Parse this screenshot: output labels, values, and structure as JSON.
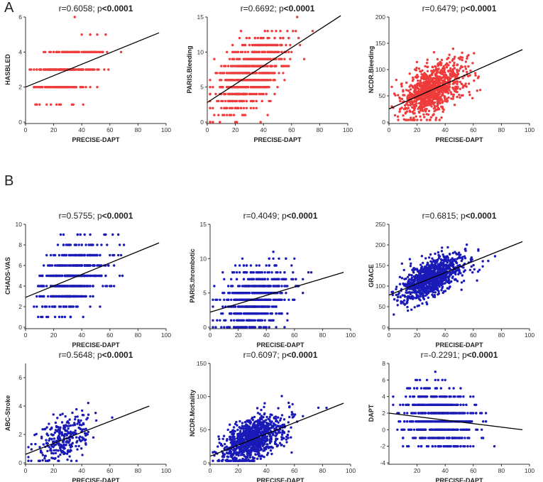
{
  "panels": {
    "a": "A",
    "b": "B"
  },
  "chart_data": [
    {
      "type": "scatter",
      "id": "c0",
      "color": "#ef3b3b",
      "title_plain": "r=0.6058; p",
      "title_bold": "<0.0001",
      "xlabel": "PRECISE-DAPT",
      "ylabel": "HASBLED",
      "xlim": [
        0,
        100
      ],
      "ylim": [
        0,
        6
      ],
      "xticks": [
        0,
        20,
        40,
        60,
        80,
        100
      ],
      "yticks": [
        0,
        2,
        4,
        6
      ],
      "trend": [
        [
          0,
          2.0
        ],
        [
          95,
          5.1
        ]
      ],
      "x_range": [
        3,
        96
      ],
      "x_center": 25,
      "x_sd": 13,
      "discrete": true,
      "spread": 0.7,
      "n": 320,
      "seed": 11,
      "y_levels": [
        1,
        2,
        3,
        4,
        5,
        6
      ]
    },
    {
      "type": "scatter",
      "id": "c1",
      "color": "#ef3b3b",
      "title_plain": "r=0.6692; p",
      "title_bold": "<0.0001",
      "xlabel": "PRECISE-DAPT",
      "ylabel": "PARIS.Bleeding",
      "xlim": [
        0,
        100
      ],
      "ylim": [
        0,
        15
      ],
      "xticks": [
        0,
        20,
        40,
        60,
        80,
        100
      ],
      "yticks": [
        0,
        5,
        10,
        15
      ],
      "trend": [
        [
          0,
          2.8
        ],
        [
          95,
          15.2
        ]
      ],
      "x_range": [
        2,
        95
      ],
      "x_center": 27,
      "x_sd": 14,
      "discrete": true,
      "spread": 2.2,
      "n": 900,
      "seed": 22,
      "y_levels": [
        0,
        1,
        2,
        3,
        4,
        5,
        6,
        7,
        8,
        9,
        10,
        11,
        12,
        13,
        14,
        15
      ]
    },
    {
      "type": "scatter",
      "id": "c2",
      "color": "#ef3b3b",
      "title_plain": "r=0.6479; p",
      "title_bold": "<0.0001",
      "xlabel": "PRECISE-DAPT",
      "ylabel": "NCDR.Bleeding",
      "xlim": [
        0,
        100
      ],
      "ylim": [
        0,
        200
      ],
      "xticks": [
        0,
        20,
        40,
        60,
        80,
        100
      ],
      "yticks": [
        0,
        50,
        100,
        150,
        200
      ],
      "trend": [
        [
          0,
          25
        ],
        [
          95,
          138
        ]
      ],
      "x_range": [
        2,
        95
      ],
      "x_center": 26,
      "x_sd": 13,
      "discrete": false,
      "spread": 22,
      "n": 1000,
      "seed": 33
    },
    {
      "type": "scatter",
      "id": "c3",
      "color": "#1a1ab8",
      "title_plain": "r=0.5755; p",
      "title_bold": "<0.0001",
      "xlabel": "PRECISE-DAPT",
      "ylabel": "CHADS-VAS",
      "xlim": [
        0,
        100
      ],
      "ylim": [
        0,
        10
      ],
      "xticks": [
        0,
        20,
        40,
        60,
        80,
        100
      ],
      "yticks": [
        0,
        2,
        4,
        6,
        8,
        10
      ],
      "trend": [
        [
          0,
          2.9
        ],
        [
          95,
          8.2
        ]
      ],
      "x_range": [
        3,
        95
      ],
      "x_center": 30,
      "x_sd": 14,
      "discrete": true,
      "spread": 1.6,
      "n": 600,
      "seed": 44,
      "y_levels": [
        1,
        2,
        3,
        4,
        5,
        6,
        7,
        8,
        9
      ]
    },
    {
      "type": "scatter",
      "id": "c4",
      "color": "#1a1ab8",
      "title_plain": "r=0.4049; p",
      "title_bold": "<0.0001",
      "xlabel": "PRECISE-DAPT",
      "ylabel": "PARIS.thrombotic",
      "xlim": [
        0,
        100
      ],
      "ylim": [
        0,
        15
      ],
      "xticks": [
        0,
        20,
        40,
        60,
        80,
        100
      ],
      "yticks": [
        0,
        5,
        10,
        15
      ],
      "trend": [
        [
          0,
          2.2
        ],
        [
          95,
          8.0
        ]
      ],
      "x_range": [
        2,
        95
      ],
      "x_center": 27,
      "x_sd": 14,
      "discrete": true,
      "spread": 2.2,
      "n": 700,
      "seed": 55,
      "y_levels": [
        0,
        1,
        2,
        3,
        4,
        5,
        6,
        7,
        8,
        9,
        10,
        11
      ]
    },
    {
      "type": "scatter",
      "id": "c5",
      "color": "#1a1ab8",
      "title_plain": "r=0.6815; p",
      "title_bold": "<0.0001",
      "xlabel": "PRECISE-DAPT",
      "ylabel": "GRACE",
      "xlim": [
        0,
        100
      ],
      "ylim": [
        0,
        250
      ],
      "xticks": [
        0,
        20,
        40,
        60,
        80,
        100
      ],
      "yticks": [
        0,
        50,
        100,
        150,
        200,
        250
      ],
      "trend": [
        [
          0,
          78
        ],
        [
          95,
          208
        ]
      ],
      "x_range": [
        2,
        95
      ],
      "x_center": 26,
      "x_sd": 13,
      "discrete": false,
      "spread": 22,
      "n": 1000,
      "seed": 66
    },
    {
      "type": "scatter",
      "id": "c6",
      "color": "#1a1ab8",
      "title_plain": "r=0.5648; p",
      "title_bold": "<0.0001",
      "xlabel": "PRECISE-DAPT",
      "ylabel": "ABC-Stroke",
      "xlim": [
        0,
        100
      ],
      "ylim": [
        0,
        7
      ],
      "xticks": [
        0,
        20,
        40,
        60,
        80,
        100
      ],
      "yticks": [
        0,
        2,
        4,
        6
      ],
      "trend": [
        [
          0,
          0.6
        ],
        [
          88,
          4.0
        ]
      ],
      "x_range": [
        2,
        90
      ],
      "x_center": 23,
      "x_sd": 11,
      "discrete": false,
      "spread": 0.8,
      "n": 280,
      "seed": 77
    },
    {
      "type": "scatter",
      "id": "c7",
      "color": "#1a1ab8",
      "title_plain": "r=0.6097; p",
      "title_bold": "<0.0001",
      "xlabel": "PRECISE-DAPT",
      "ylabel": "NCDR.Mortality",
      "xlim": [
        0,
        100
      ],
      "ylim": [
        0,
        150
      ],
      "xticks": [
        0,
        20,
        40,
        60,
        80,
        100
      ],
      "yticks": [
        0,
        50,
        100,
        150
      ],
      "trend": [
        [
          0,
          10
        ],
        [
          95,
          90
        ]
      ],
      "x_range": [
        2,
        95
      ],
      "x_center": 26,
      "x_sd": 13,
      "discrete": false,
      "spread": 16,
      "n": 1000,
      "seed": 88
    },
    {
      "type": "scatter",
      "id": "c8",
      "color": "#1a1ab8",
      "title_plain": "r=-0.2291; p",
      "title_bold": "<0.0001",
      "xlabel": "PRECISE-DAPT",
      "ylabel": "DAPT",
      "xlim": [
        0,
        100
      ],
      "ylim": [
        -4,
        8
      ],
      "xticks": [
        20,
        40,
        60,
        80,
        100
      ],
      "yticks": [
        -4,
        -2,
        0,
        2,
        4,
        6,
        8
      ],
      "trend": [
        [
          0,
          2.0
        ],
        [
          95,
          0.0
        ]
      ],
      "x_range": [
        3,
        95
      ],
      "x_center": 30,
      "x_sd": 15,
      "discrete": true,
      "spread": 1.8,
      "n": 700,
      "seed": 99,
      "y_levels": [
        -2,
        -1,
        0,
        1,
        2,
        3,
        4,
        5,
        6,
        7
      ]
    }
  ]
}
